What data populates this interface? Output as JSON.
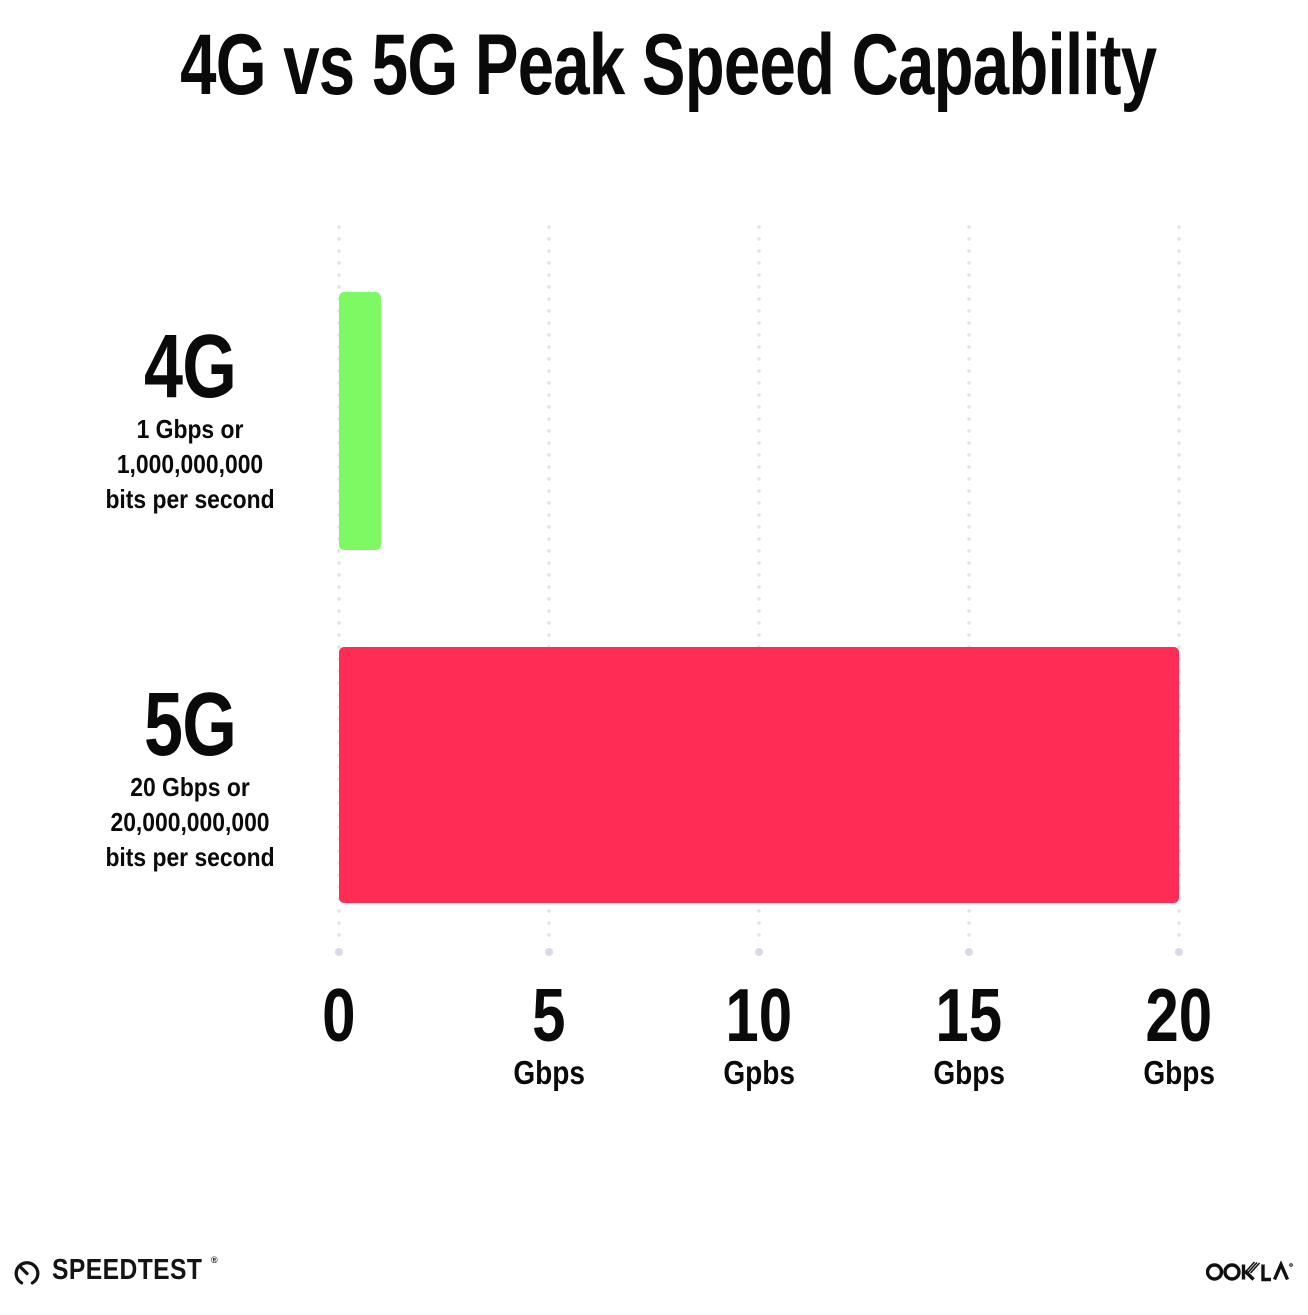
{
  "title": "4G vs 5G Peak Speed Capability",
  "chart_data": {
    "type": "bar",
    "orientation": "horizontal",
    "title": "4G vs 5G Peak Speed Capability",
    "categories": [
      "4G",
      "5G"
    ],
    "values": [
      1,
      20
    ],
    "value_unit": "Gbps",
    "xlim": [
      0,
      20
    ],
    "xlabel": "",
    "ylabel": "",
    "grid": "dotted vertical gridlines at 0, 5, 10, 15, 20 with larger end dot at bottom",
    "legend": "none",
    "bar_colors": [
      "#7EF964",
      "#FF2D55"
    ],
    "x_ticks": [
      {
        "value": "0",
        "unit": ""
      },
      {
        "value": "5",
        "unit": "Gbps"
      },
      {
        "value": "10",
        "unit": "Gpbs"
      },
      {
        "value": "15",
        "unit": "Gbps"
      },
      {
        "value": "20",
        "unit": "Gbps"
      }
    ]
  },
  "rows": [
    {
      "label": "4G",
      "sublabel_lines": [
        "1 Gbps or",
        "1,000,000,000",
        "bits per second"
      ],
      "value_gbps": 1,
      "color": "#7EF964"
    },
    {
      "label": "5G",
      "sublabel_lines": [
        "20 Gbps or",
        "20,000,000,000",
        "bits per second"
      ],
      "value_gbps": 20,
      "color": "#FF2D55"
    }
  ],
  "footer": {
    "speedtest_brand": "SPEEDTEST",
    "speedtest_trademark": "®",
    "ookla_brand": "OOKLA",
    "ookla_trademark": "®"
  },
  "colors": {
    "background": "#FFFFFF",
    "text": "#0A0A0A",
    "grid_dot": "#E2E3EF",
    "grid_end_dot": "#D8DBE8"
  }
}
